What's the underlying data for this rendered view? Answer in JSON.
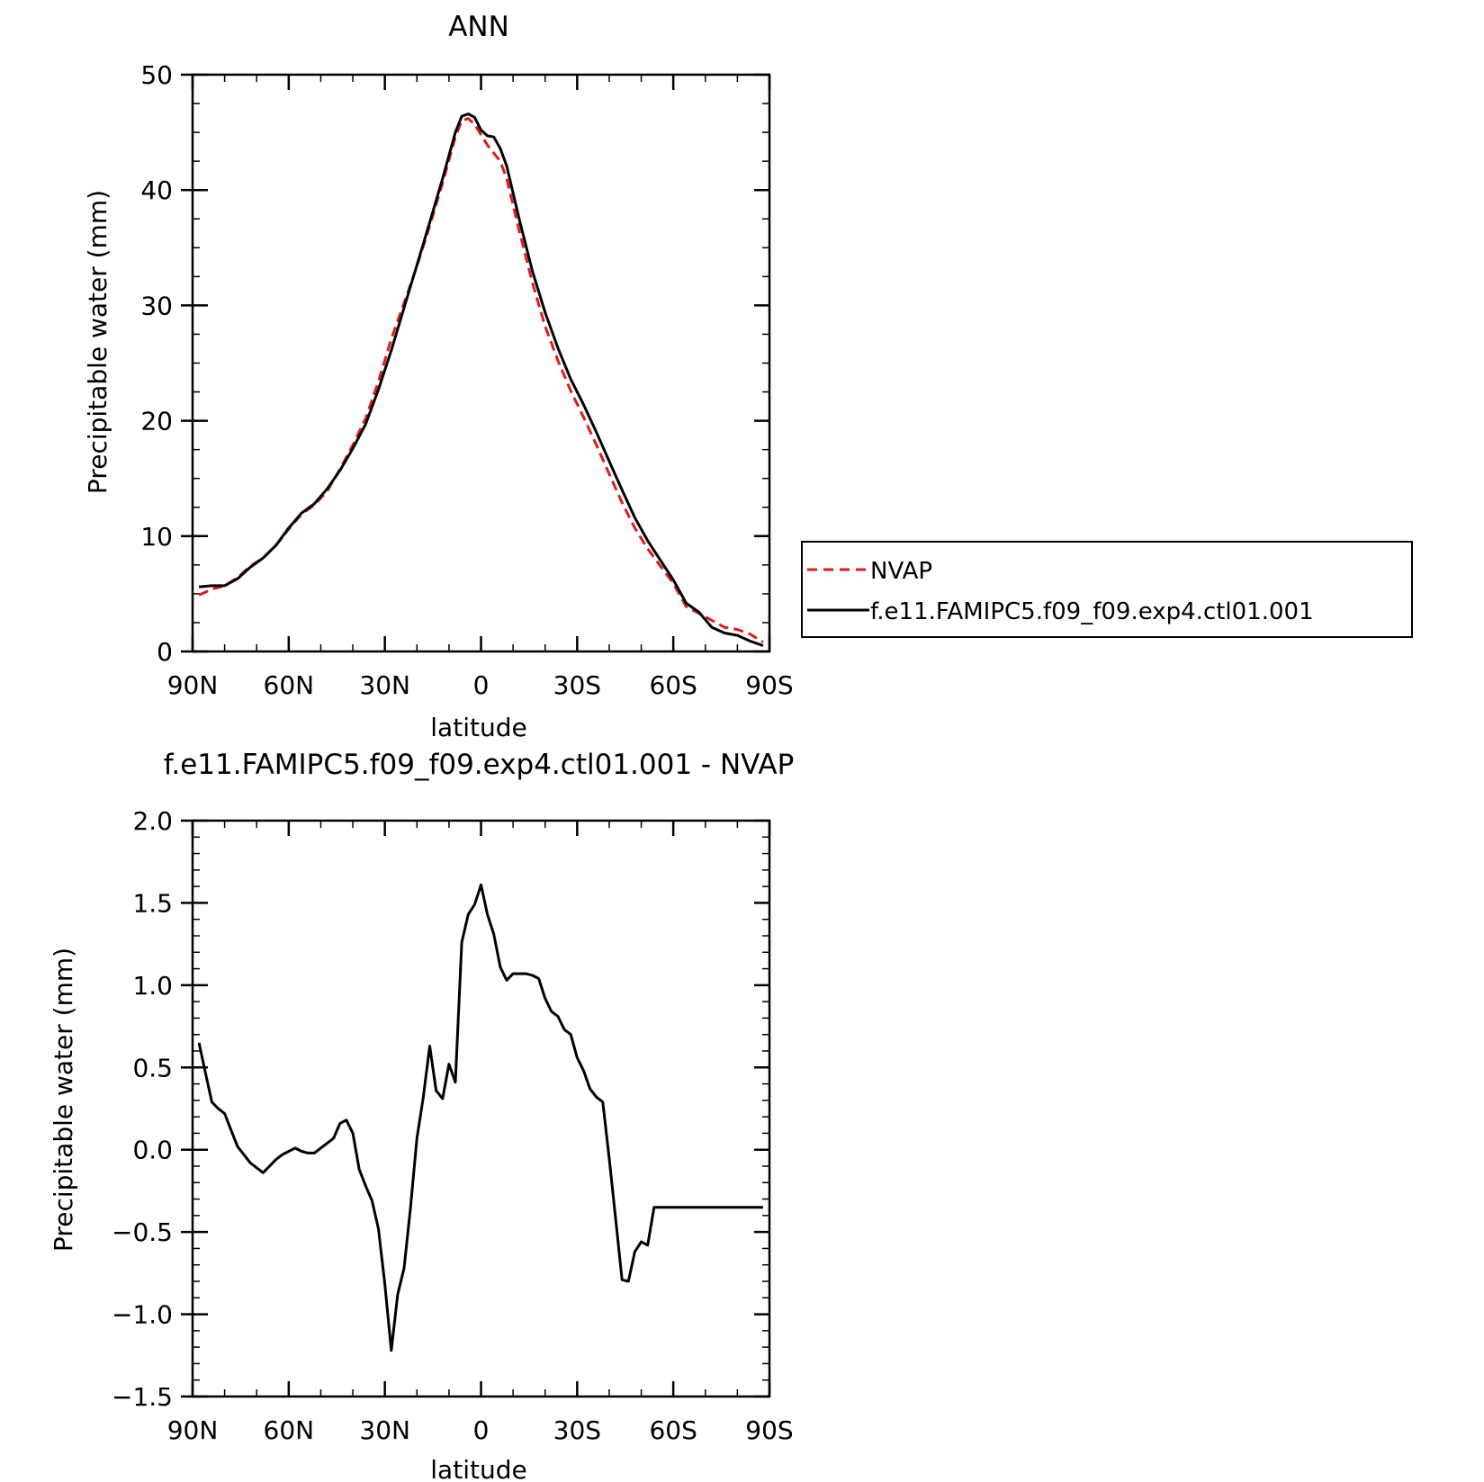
{
  "chart_data": [
    {
      "type": "line",
      "title": "ANN",
      "xlabel": "latitude",
      "ylabel": "Precipitable water (mm)",
      "xlim": [
        90,
        -90
      ],
      "ylim": [
        0,
        50
      ],
      "xticks": [
        {
          "value": 90,
          "label": "90N"
        },
        {
          "value": 60,
          "label": "60N"
        },
        {
          "value": 30,
          "label": "30N"
        },
        {
          "value": 0,
          "label": "0"
        },
        {
          "value": -30,
          "label": "30S"
        },
        {
          "value": -60,
          "label": "60S"
        },
        {
          "value": -90,
          "label": "90S"
        }
      ],
      "yticks": [
        {
          "value": 0,
          "label": "0"
        },
        {
          "value": 10,
          "label": "10"
        },
        {
          "value": 20,
          "label": "20"
        },
        {
          "value": 30,
          "label": "30"
        },
        {
          "value": 40,
          "label": "40"
        },
        {
          "value": 50,
          "label": "50"
        }
      ],
      "grid": false,
      "legend_position": "right",
      "series": [
        {
          "name": "NVAP",
          "color": "#e41a1c",
          "dash": true,
          "x": [
            88,
            84,
            80,
            76,
            72,
            68,
            64,
            60,
            56,
            52,
            48,
            44,
            40,
            36,
            32,
            28,
            24,
            20,
            16,
            12,
            8,
            6,
            4,
            2,
            0,
            -2,
            -4,
            -6,
            -8,
            -12,
            -16,
            -20,
            -24,
            -28,
            -32,
            -36,
            -40,
            -44,
            -48,
            -52,
            -56,
            -60,
            -64,
            -68,
            -72,
            -76,
            -80,
            -84,
            -88
          ],
          "y": [
            4.9,
            5.4,
            5.7,
            6.4,
            7.4,
            8.1,
            9.2,
            10.6,
            11.9,
            12.7,
            13.9,
            15.8,
            17.9,
            20.2,
            23.4,
            27.1,
            30.2,
            33.4,
            36.9,
            40.6,
            44.6,
            46.0,
            46.2,
            45.7,
            44.8,
            43.9,
            43.2,
            42.5,
            41.0,
            36.4,
            32.0,
            28.2,
            25.2,
            22.6,
            20.3,
            17.9,
            15.4,
            12.9,
            10.7,
            8.9,
            7.4,
            5.9,
            3.9,
            3.3,
            2.7,
            2.1,
            1.9,
            1.5,
            0.8
          ]
        },
        {
          "name": "f.e11.FAMIPC5.f09_f09.exp4.ctl01.001",
          "color": "#000000",
          "dash": false,
          "x": [
            88,
            84,
            80,
            76,
            72,
            68,
            64,
            60,
            56,
            52,
            48,
            44,
            40,
            36,
            32,
            28,
            24,
            20,
            16,
            12,
            8,
            6,
            4,
            2,
            0,
            -2,
            -4,
            -6,
            -8,
            -12,
            -16,
            -20,
            -24,
            -28,
            -32,
            -36,
            -40,
            -44,
            -48,
            -52,
            -56,
            -60,
            -64,
            -68,
            -72,
            -76,
            -80,
            -84,
            -88
          ],
          "y": [
            5.6,
            5.7,
            5.7,
            6.3,
            7.3,
            8.1,
            9.2,
            10.7,
            12.0,
            12.8,
            14.1,
            15.7,
            17.6,
            19.7,
            22.7,
            26.1,
            29.8,
            33.5,
            37.2,
            41.0,
            45.0,
            46.4,
            46.6,
            46.3,
            45.2,
            44.7,
            44.6,
            43.6,
            42.1,
            37.4,
            33.0,
            29.4,
            26.3,
            23.6,
            21.4,
            19.0,
            16.5,
            14.0,
            11.6,
            9.6,
            7.9,
            6.2,
            4.2,
            3.4,
            2.1,
            1.6,
            1.4,
            0.9,
            0.5
          ]
        }
      ]
    },
    {
      "type": "line",
      "title": "f.e11.FAMIPC5.f09_f09.exp4.ctl01.001 - NVAP",
      "xlabel": "latitude",
      "ylabel": "Precipitable water (mm)",
      "xlim": [
        90,
        -90
      ],
      "ylim": [
        -1.5,
        2.0
      ],
      "xticks": [
        {
          "value": 90,
          "label": "90N"
        },
        {
          "value": 60,
          "label": "60N"
        },
        {
          "value": 30,
          "label": "30N"
        },
        {
          "value": 0,
          "label": "0"
        },
        {
          "value": -30,
          "label": "30S"
        },
        {
          "value": -60,
          "label": "60S"
        },
        {
          "value": -90,
          "label": "90S"
        }
      ],
      "yticks": [
        {
          "value": -1.5,
          "label": "−1.5"
        },
        {
          "value": -1.0,
          "label": "−1.0"
        },
        {
          "value": -0.5,
          "label": "−0.5"
        },
        {
          "value": 0.0,
          "label": "0.0"
        },
        {
          "value": 0.5,
          "label": "0.5"
        },
        {
          "value": 1.0,
          "label": "1.0"
        },
        {
          "value": 1.5,
          "label": "1.5"
        },
        {
          "value": 2.0,
          "label": "2.0"
        }
      ],
      "grid": false,
      "series": [
        {
          "color": "#000000",
          "dash": false,
          "x": [
            88,
            86,
            84,
            82,
            80,
            78,
            76,
            74,
            72,
            70,
            68,
            66,
            64,
            62,
            60,
            58,
            56,
            54,
            52,
            50,
            48,
            46,
            44,
            42,
            40,
            38,
            36,
            34,
            32,
            30,
            28,
            26,
            24,
            22,
            20,
            18,
            16,
            14,
            12,
            10,
            8,
            6,
            4,
            2,
            0,
            -2,
            -4,
            -6,
            -8,
            -10,
            -12,
            -14,
            -16,
            -18,
            -20,
            -22,
            -24,
            -26,
            -28,
            -30,
            -32,
            -34,
            -36,
            -38,
            -40,
            -42,
            -44,
            -46,
            -48,
            -50,
            -52,
            -54,
            -56,
            -58,
            -60,
            -62,
            -64,
            -66,
            -68,
            -70,
            -72,
            -74,
            -76,
            -78,
            -80,
            -82,
            -84,
            -86,
            -88
          ],
          "y": [
            0.65,
            0.47,
            0.29,
            0.25,
            0.22,
            0.12,
            0.02,
            -0.03,
            -0.08,
            -0.11,
            -0.14,
            -0.1,
            -0.06,
            -0.03,
            -0.01,
            0.01,
            -0.01,
            -0.02,
            -0.02,
            0.01,
            0.04,
            0.07,
            0.16,
            0.18,
            0.1,
            -0.12,
            -0.22,
            -0.31,
            -0.48,
            -0.82,
            -1.22,
            -0.88,
            -0.72,
            -0.35,
            0.07,
            0.32,
            0.63,
            0.36,
            0.31,
            0.52,
            0.41,
            1.26,
            1.43,
            1.49,
            1.61,
            1.43,
            1.31,
            1.11,
            1.03,
            1.07,
            1.07,
            1.07,
            1.06,
            1.04,
            0.92,
            0.84,
            0.81,
            0.73,
            0.7,
            0.56,
            0.48,
            0.37,
            0.32,
            0.29,
            -0.05,
            -0.42,
            -0.79,
            -0.8,
            -0.62,
            -0.56,
            -0.58,
            -0.35,
            -0.35,
            -0.35,
            -0.35,
            -0.35,
            -0.35,
            -0.35,
            -0.35,
            -0.35,
            -0.35,
            -0.35,
            -0.35,
            -0.35,
            -0.35,
            -0.35,
            -0.35,
            -0.35,
            -0.35
          ]
        }
      ]
    }
  ]
}
